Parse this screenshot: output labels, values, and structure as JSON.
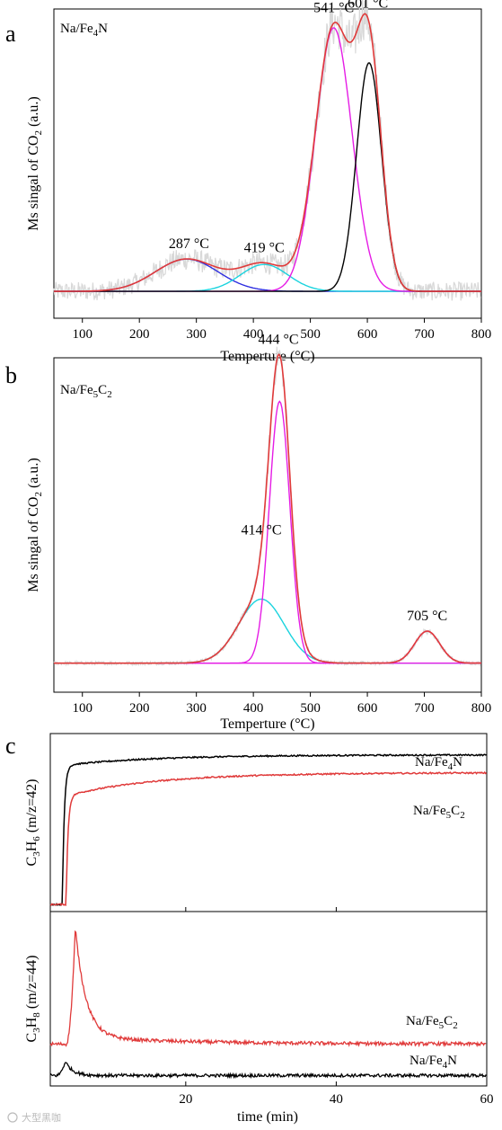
{
  "chart_data": [
    {
      "panel": "a",
      "type": "line",
      "sample_label": "Na/Fe4N",
      "xlabel": "Temperture (°C)",
      "ylabel": "Ms singal of CO2 (a.u.)",
      "xlim": [
        50,
        800
      ],
      "xticks": [
        100,
        200,
        300,
        400,
        500,
        600,
        700,
        800
      ],
      "ylim": [
        0,
        1.15
      ],
      "baseline": 0.1,
      "peak_labels": [
        {
          "text": "287 °C",
          "x": 287
        },
        {
          "text": "419 °C",
          "x": 419
        },
        {
          "text": "541 °C",
          "x": 541
        },
        {
          "text": "601 °C",
          "x": 601
        }
      ],
      "components": [
        {
          "color": "#2e2ee0",
          "center": 283,
          "sigma": 55,
          "height": 0.12
        },
        {
          "color": "#19d3de",
          "center": 419,
          "sigma": 42,
          "height": 0.1
        },
        {
          "color": "#e51ce5",
          "center": 541,
          "sigma": 32,
          "height": 0.98
        },
        {
          "color": "#000000",
          "center": 603,
          "sigma": 22,
          "height": 0.85
        }
      ],
      "envelope_color": "#e03a3a",
      "raw_color": "#d8d8d8"
    },
    {
      "panel": "b",
      "type": "line",
      "sample_label": "Na/Fe5C2",
      "xlabel": "Temperture (°C)",
      "ylabel": "Ms singal of CO2 (a.u.)",
      "xlim": [
        50,
        800
      ],
      "xticks": [
        100,
        200,
        300,
        400,
        500,
        600,
        700,
        800
      ],
      "ylim": [
        0,
        1.15
      ],
      "baseline": 0.1,
      "peak_labels": [
        {
          "text": "414 °C",
          "x": 414
        },
        {
          "text": "444 °C",
          "x": 444
        },
        {
          "text": "705 °C",
          "x": 705
        }
      ],
      "components": [
        {
          "color": "#19d3de",
          "center": 414,
          "sigma": 40,
          "height": 0.22
        },
        {
          "color": "#e51ce5",
          "center": 446,
          "sigma": 18,
          "height": 0.9
        },
        {
          "color": "#e51ce5",
          "center": 705,
          "sigma": 22,
          "height": 0.11
        }
      ],
      "envelope_color": "#e03a3a",
      "raw_color": "#d8d8d8"
    },
    {
      "panel": "c",
      "type": "line",
      "xlabel": "time (min)",
      "xlim": [
        2,
        60
      ],
      "xticks": [
        20,
        40,
        60
      ],
      "subplots": [
        {
          "ylabel": "C3H6 (m/z=42)",
          "ylim": [
            0,
            1
          ],
          "series": [
            {
              "name": "Na/Fe4N",
              "color": "#000000",
              "onset": 3.6,
              "initial": 0.82,
              "plateau": 0.88
            },
            {
              "name": "Na/Fe5C2",
              "color": "#e03a3a",
              "onset": 4.1,
              "initial": 0.65,
              "plateau": 0.78
            }
          ]
        },
        {
          "ylabel": "C3H8 (m/z=44)",
          "ylim": [
            0,
            1
          ],
          "series": [
            {
              "name": "Na/Fe5C2",
              "color": "#e03a3a",
              "peak_time": 5.3,
              "peak": 0.88,
              "tail": 0.24
            },
            {
              "name": "Na/Fe4N",
              "color": "#000000",
              "peak_time": 4.0,
              "peak": 0.14,
              "tail": 0.06
            }
          ]
        }
      ]
    }
  ],
  "watermark": "大型黑咖"
}
